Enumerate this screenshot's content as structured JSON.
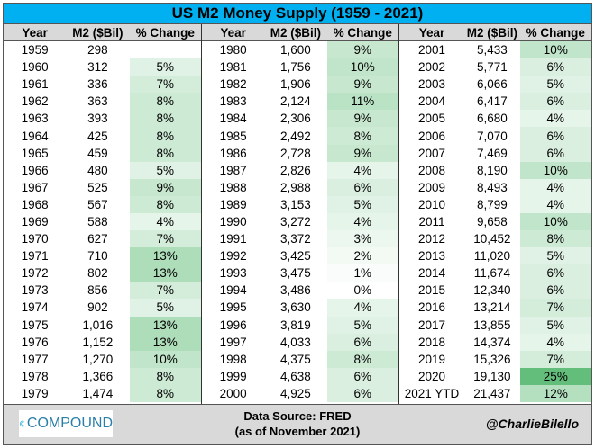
{
  "chart_data": {
    "type": "table",
    "title": "US M2 Money Supply (1959 - 2021)",
    "columns": [
      "Year",
      "M2 ($Bil)",
      "% Change"
    ],
    "groups": [
      [
        [
          "1959",
          "298",
          ""
        ],
        [
          "1960",
          "312",
          "5%"
        ],
        [
          "1961",
          "336",
          "7%"
        ],
        [
          "1962",
          "363",
          "8%"
        ],
        [
          "1963",
          "393",
          "8%"
        ],
        [
          "1964",
          "425",
          "8%"
        ],
        [
          "1965",
          "459",
          "8%"
        ],
        [
          "1966",
          "480",
          "5%"
        ],
        [
          "1967",
          "525",
          "9%"
        ],
        [
          "1968",
          "567",
          "8%"
        ],
        [
          "1969",
          "588",
          "4%"
        ],
        [
          "1970",
          "627",
          "7%"
        ],
        [
          "1971",
          "710",
          "13%"
        ],
        [
          "1972",
          "802",
          "13%"
        ],
        [
          "1973",
          "856",
          "7%"
        ],
        [
          "1974",
          "902",
          "5%"
        ],
        [
          "1975",
          "1,016",
          "13%"
        ],
        [
          "1976",
          "1,152",
          "13%"
        ],
        [
          "1977",
          "1,270",
          "10%"
        ],
        [
          "1978",
          "1,366",
          "8%"
        ],
        [
          "1979",
          "1,474",
          "8%"
        ]
      ],
      [
        [
          "1980",
          "1,600",
          "9%"
        ],
        [
          "1981",
          "1,756",
          "10%"
        ],
        [
          "1982",
          "1,906",
          "9%"
        ],
        [
          "1983",
          "2,124",
          "11%"
        ],
        [
          "1984",
          "2,306",
          "9%"
        ],
        [
          "1985",
          "2,492",
          "8%"
        ],
        [
          "1986",
          "2,728",
          "9%"
        ],
        [
          "1987",
          "2,826",
          "4%"
        ],
        [
          "1988",
          "2,988",
          "6%"
        ],
        [
          "1989",
          "3,153",
          "5%"
        ],
        [
          "1990",
          "3,272",
          "4%"
        ],
        [
          "1991",
          "3,372",
          "3%"
        ],
        [
          "1992",
          "3,425",
          "2%"
        ],
        [
          "1993",
          "3,475",
          "1%"
        ],
        [
          "1994",
          "3,486",
          "0%"
        ],
        [
          "1995",
          "3,630",
          "4%"
        ],
        [
          "1996",
          "3,819",
          "5%"
        ],
        [
          "1997",
          "4,033",
          "6%"
        ],
        [
          "1998",
          "4,375",
          "8%"
        ],
        [
          "1999",
          "4,638",
          "6%"
        ],
        [
          "2000",
          "4,925",
          "6%"
        ]
      ],
      [
        [
          "2001",
          "5,433",
          "10%"
        ],
        [
          "2002",
          "5,771",
          "6%"
        ],
        [
          "2003",
          "6,066",
          "5%"
        ],
        [
          "2004",
          "6,417",
          "6%"
        ],
        [
          "2005",
          "6,680",
          "4%"
        ],
        [
          "2006",
          "7,070",
          "6%"
        ],
        [
          "2007",
          "7,469",
          "6%"
        ],
        [
          "2008",
          "8,190",
          "10%"
        ],
        [
          "2009",
          "8,493",
          "4%"
        ],
        [
          "2010",
          "8,799",
          "4%"
        ],
        [
          "2011",
          "9,658",
          "10%"
        ],
        [
          "2012",
          "10,452",
          "8%"
        ],
        [
          "2013",
          "11,020",
          "5%"
        ],
        [
          "2014",
          "11,674",
          "6%"
        ],
        [
          "2015",
          "12,340",
          "6%"
        ],
        [
          "2016",
          "13,214",
          "7%"
        ],
        [
          "2017",
          "13,855",
          "5%"
        ],
        [
          "2018",
          "14,374",
          "4%"
        ],
        [
          "2019",
          "15,326",
          "7%"
        ],
        [
          "2020",
          "19,130",
          "25%"
        ],
        [
          "2021 YTD",
          "21,437",
          "12%"
        ]
      ]
    ],
    "heat_color": "#63be7b",
    "heat_max": 25
  },
  "footer": {
    "logo": "COMPOUND",
    "source_line1": "Data Source: FRED",
    "source_line2": "(as of November 2021)",
    "handle": "@CharlieBilello"
  },
  "colors": {
    "title_bg": "#00b0f0",
    "header_bg": "#d9d9d9"
  }
}
